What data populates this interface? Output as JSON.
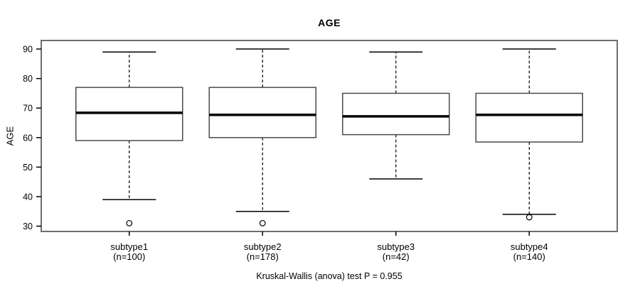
{
  "chart_data": {
    "type": "boxplot",
    "title": "AGE",
    "ylabel": "AGE",
    "footnote": "Kruskal-Wallis (anova) test P = 0.955",
    "yticks": [
      30,
      40,
      50,
      60,
      70,
      80,
      90
    ],
    "ylim": [
      28.2,
      92.9
    ],
    "grid": false,
    "groups": [
      {
        "label": "subtype1",
        "sublabel": "(n=100)",
        "whisker_low": 39,
        "q1": 59,
        "median": 68.4,
        "q3": 77,
        "whisker_high": 89,
        "outliers": [
          31
        ]
      },
      {
        "label": "subtype2",
        "sublabel": "(n=178)",
        "whisker_low": 35,
        "q1": 60,
        "median": 67.7,
        "q3": 77,
        "whisker_high": 90,
        "outliers": [
          31
        ]
      },
      {
        "label": "subtype3",
        "sublabel": "(n=42)",
        "whisker_low": 46,
        "q1": 61,
        "median": 67.2,
        "q3": 75,
        "whisker_high": 89,
        "outliers": []
      },
      {
        "label": "subtype4",
        "sublabel": "(n=140)",
        "whisker_low": 34,
        "q1": 58.5,
        "median": 67.7,
        "q3": 75,
        "whisker_high": 90,
        "outliers": [
          33
        ]
      }
    ],
    "colors": {
      "background": "#ffffff",
      "text": "#000000",
      "frame": "#6e6e6e",
      "box_stroke": "#4a4a4a",
      "median": "#000000",
      "whisker": "#000000"
    }
  }
}
